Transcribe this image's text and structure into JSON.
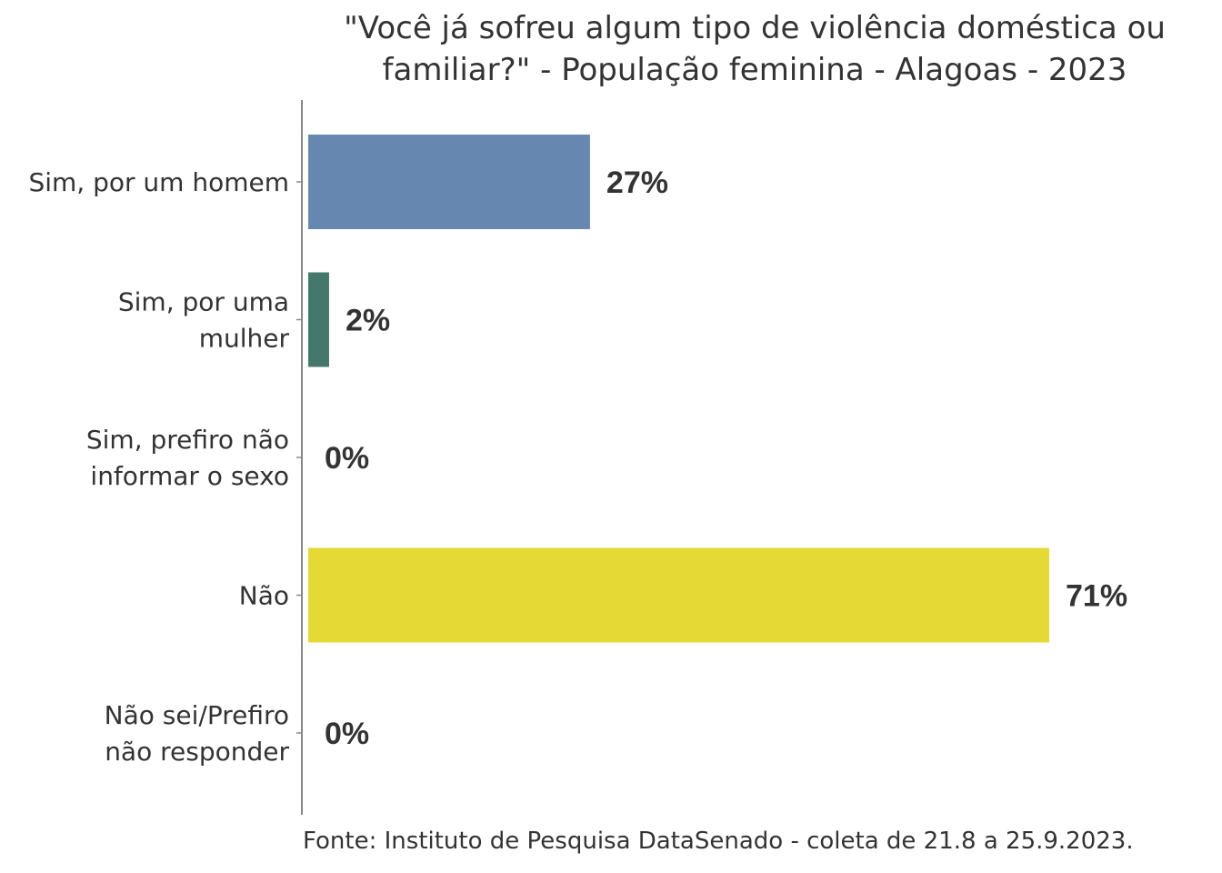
{
  "chart_data": {
    "type": "bar",
    "orientation": "horizontal",
    "title": "\"Você já sofreu algum tipo de violência doméstica ou\nfamiliar?\" - População feminina - Alagoas - 2023",
    "categories": [
      [
        "Sim, por um homem"
      ],
      [
        "Sim, por uma",
        "mulher"
      ],
      [
        "Sim, prefiro não",
        "informar o sexo"
      ],
      [
        "Não"
      ],
      [
        "Não sei/Prefiro",
        "não responder"
      ]
    ],
    "values": [
      27,
      2,
      0,
      71,
      0
    ],
    "value_labels": [
      "27%",
      "2%",
      "0%",
      "71%",
      "0%"
    ],
    "colors": [
      "#6688b0",
      "#44786a",
      "#999999",
      "#e5d935",
      "#999999"
    ],
    "xlim": [
      0,
      100
    ],
    "grid": false
  },
  "source": "Fonte: Instituto de Pesquisa DataSenado - coleta de 21.8 a 25.9.2023."
}
